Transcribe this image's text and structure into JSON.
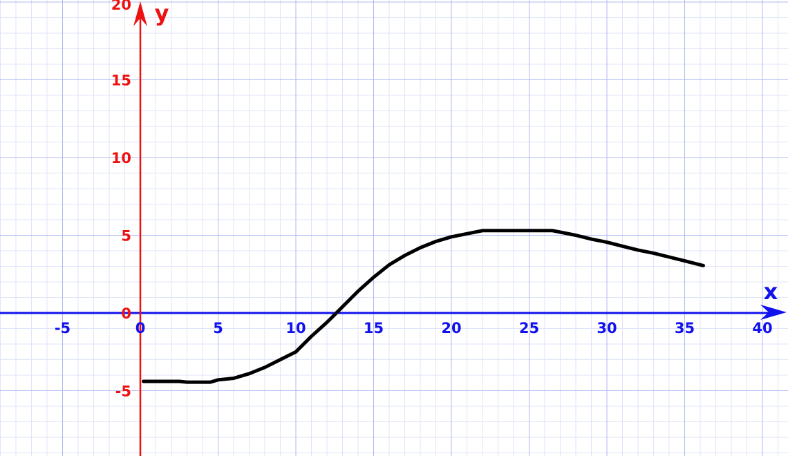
{
  "colors": {
    "background": "#ffffff",
    "minor_grid": "#dfe4f9",
    "major_grid": "#b0b8f0",
    "x_axis": "#1111ee",
    "y_axis": "#ee1111",
    "curve": "#000000"
  },
  "chart_data": {
    "type": "line",
    "title": "",
    "xlabel": "x",
    "ylabel": "y",
    "xlim": [
      -9,
      42
    ],
    "ylim": [
      -9,
      20
    ],
    "grid": true,
    "x_ticks": [
      "-5",
      "0",
      "5",
      "10",
      "15",
      "20",
      "25",
      "30",
      "35",
      "40"
    ],
    "y_ticks": [
      "20",
      "15",
      "10",
      "5",
      "0",
      "-5"
    ],
    "series": [
      {
        "x": [
          0.2,
          1,
          2,
          2.5,
          3,
          4,
          4.5,
          5,
          6,
          7,
          8,
          9,
          10,
          11,
          12,
          12.5,
          13,
          14,
          15,
          16,
          17,
          18,
          19,
          20,
          21,
          22,
          23,
          24,
          25,
          26,
          26.5,
          27,
          28,
          29,
          30,
          31,
          32,
          33,
          34,
          35,
          36.2
        ],
        "y": [
          -4.4,
          -4.4,
          -4.4,
          -4.4,
          -4.45,
          -4.45,
          -4.45,
          -4.3,
          -4.2,
          -3.9,
          -3.5,
          -3.0,
          -2.5,
          -1.5,
          -0.6,
          -0.1,
          0.4,
          1.4,
          2.3,
          3.1,
          3.7,
          4.2,
          4.6,
          4.9,
          5.1,
          5.3,
          5.3,
          5.3,
          5.3,
          5.3,
          5.3,
          5.2,
          5.0,
          4.75,
          4.55,
          4.3,
          4.05,
          3.85,
          3.6,
          3.35,
          3.05
        ]
      }
    ]
  }
}
